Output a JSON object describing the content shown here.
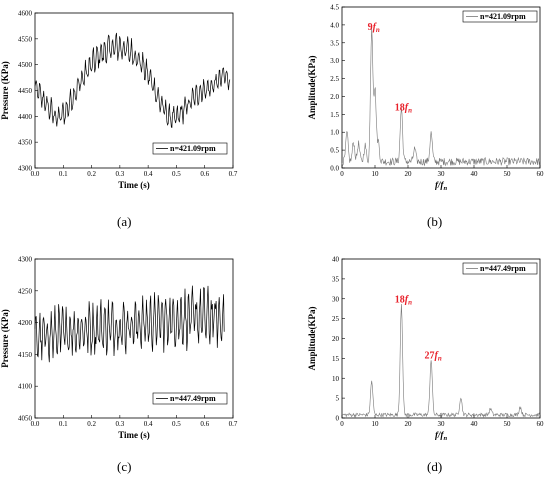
{
  "figure": {
    "panel_labels": [
      "(a)",
      "(b)",
      "(c)",
      "(d)"
    ]
  },
  "chart_data": [
    {
      "type": "line",
      "panel": "(a)",
      "xlabel": "Time (s)",
      "ylabel": "Pressure (KPa)",
      "xlim": [
        0.0,
        0.7
      ],
      "ylim": [
        4300,
        4600
      ],
      "xticks": [
        "0.0",
        "0.1",
        "0.2",
        "0.3",
        "0.4",
        "0.5",
        "0.6",
        "0.7"
      ],
      "yticks": [
        "4300",
        "4350",
        "4400",
        "4450",
        "4500",
        "4550",
        "4600"
      ],
      "legend": "n=421.09rpm",
      "legend_position": "bottom-right",
      "series": [
        {
          "x": [
            0.0,
            0.02,
            0.05,
            0.08,
            0.11,
            0.14,
            0.17,
            0.2,
            0.23,
            0.26,
            0.29,
            0.32,
            0.35,
            0.38,
            0.41,
            0.44,
            0.47,
            0.5,
            0.53,
            0.56,
            0.59,
            0.62,
            0.65,
            0.67,
            0.69
          ],
          "y": [
            4455,
            4440,
            4415,
            4395,
            4410,
            4445,
            4475,
            4500,
            4520,
            4530,
            4535,
            4530,
            4520,
            4500,
            4470,
            4430,
            4400,
            4395,
            4415,
            4435,
            4450,
            4455,
            4470,
            4480,
            4470
          ],
          "amplitude": [
            30,
            30,
            32,
            32,
            30,
            30,
            32,
            34,
            35,
            36,
            36,
            36,
            34,
            32,
            30,
            30,
            30,
            30,
            30,
            28,
            28,
            28,
            28,
            30,
            30
          ]
        }
      ]
    },
    {
      "type": "line",
      "panel": "(b)",
      "xlabel": "f/fn",
      "ylabel": "Amplitude(KPa)",
      "xlim": [
        0,
        60
      ],
      "ylim": [
        0.0,
        4.5
      ],
      "xticks": [
        "0",
        "10",
        "20",
        "30",
        "40",
        "50",
        "60"
      ],
      "yticks": [
        "0.0",
        "0.5",
        "1.0",
        "1.5",
        "2.0",
        "2.5",
        "3.0",
        "3.5",
        "4.0",
        "4.5"
      ],
      "legend": "n=421.09rpm",
      "legend_position": "top-right",
      "annotations": [
        {
          "text": "9fn",
          "x": 9,
          "y": 3.75
        },
        {
          "text": "18fn",
          "x": 18,
          "y": 1.5
        }
      ],
      "series": [
        {
          "peaks": [
            {
              "x": 1.5,
              "y": 0.8
            },
            {
              "x": 3.5,
              "y": 0.55
            },
            {
              "x": 5,
              "y": 0.5
            },
            {
              "x": 7,
              "y": 0.45
            },
            {
              "x": 9,
              "y": 3.75
            },
            {
              "x": 10,
              "y": 2.0
            },
            {
              "x": 11,
              "y": 0.55
            },
            {
              "x": 18,
              "y": 1.5
            },
            {
              "x": 22,
              "y": 0.35
            },
            {
              "x": 27,
              "y": 0.8
            }
          ],
          "noise_level": 0.18
        }
      ]
    },
    {
      "type": "line",
      "panel": "(c)",
      "xlabel": "Time (s)",
      "ylabel": "Pressure (KPa)",
      "xlim": [
        0.0,
        0.7
      ],
      "ylim": [
        4050,
        4300
      ],
      "xticks": [
        "0.0",
        "0.1",
        "0.2",
        "0.3",
        "0.4",
        "0.5",
        "0.6",
        "0.7"
      ],
      "yticks": [
        "4050",
        "4100",
        "4150",
        "4200",
        "4250",
        "4300"
      ],
      "legend": "n=447.49rpm",
      "legend_position": "bottom-right",
      "series": [
        {
          "x": [
            0.0,
            0.1,
            0.2,
            0.3,
            0.4,
            0.5,
            0.6,
            0.67
          ],
          "y": [
            4175,
            4185,
            4190,
            4195,
            4200,
            4205,
            4210,
            4205
          ],
          "amplitude": [
            50,
            55,
            55,
            55,
            55,
            58,
            58,
            55
          ]
        }
      ]
    },
    {
      "type": "line",
      "panel": "(d)",
      "xlabel": "f/fn",
      "ylabel": "Amplitude(KPa)",
      "xlim": [
        0,
        60
      ],
      "ylim": [
        0,
        40
      ],
      "xticks": [
        "0",
        "10",
        "20",
        "30",
        "40",
        "50",
        "60"
      ],
      "yticks": [
        "0",
        "5",
        "10",
        "15",
        "20",
        "25",
        "30",
        "35",
        "40"
      ],
      "legend": "n=447.49rpm",
      "legend_position": "top-right",
      "annotations": [
        {
          "text": "18fn",
          "x": 18,
          "y": 28
        },
        {
          "text": "27fn",
          "x": 27,
          "y": 14
        }
      ],
      "series": [
        {
          "peaks": [
            {
              "x": 9,
              "y": 8.5
            },
            {
              "x": 18,
              "y": 28
            },
            {
              "x": 27,
              "y": 14
            },
            {
              "x": 36,
              "y": 4.5
            },
            {
              "x": 45,
              "y": 1.5
            },
            {
              "x": 54,
              "y": 2.0
            }
          ],
          "noise_level": 0.8
        }
      ]
    }
  ]
}
